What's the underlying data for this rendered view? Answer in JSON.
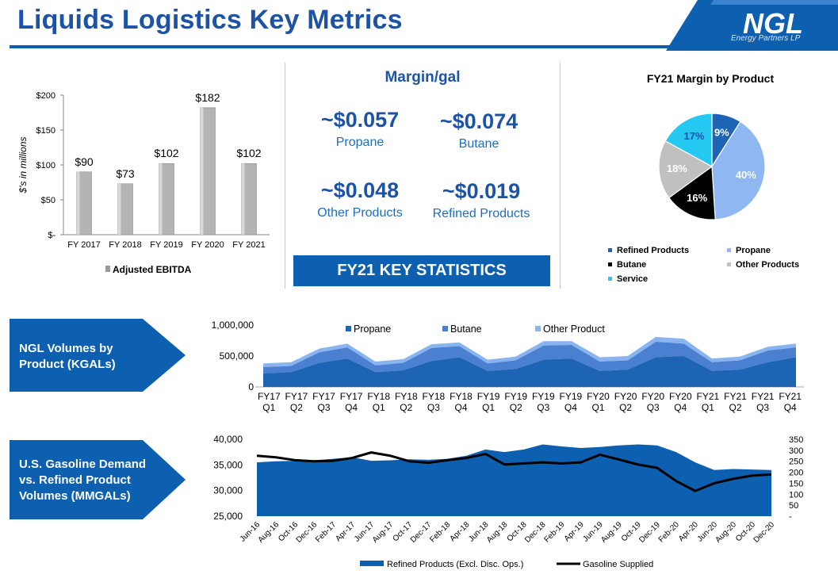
{
  "header": {
    "title": "Liquids Logistics Key Metrics",
    "logo_text": "NGL",
    "logo_tagline": "Energy Partners LP"
  },
  "colors": {
    "title_blue": "#1c53a6",
    "dark_blue": "#0d5fb0",
    "propane_blue": "#1e64b4",
    "butane_blue": "#4b7fd0",
    "other_blue": "#8ab4f0",
    "pie_light": "#8fb8f2",
    "pie_grey": "#c0c0c0",
    "pie_cyan": "#25c8f0",
    "bar_grey": "#b4b4b4",
    "refined_fill": "#0d5fb0"
  },
  "margin_panel": {
    "title": "Margin/gal",
    "items": [
      {
        "value": "~$0.057",
        "label": "Propane"
      },
      {
        "value": "~$0.074",
        "label": "Butane"
      },
      {
        "value": "~$0.048",
        "label": "Other Products"
      },
      {
        "value": "~$0.019",
        "label": "Refined Products"
      }
    ],
    "key_stats": "FY21 KEY STATISTICS"
  },
  "arrows": {
    "volumes": [
      "NGL Volumes by",
      "Product (KGALs)"
    ],
    "gasoline": [
      "U.S. Gasoline Demand",
      "vs. Refined Product",
      "Volumes (MMGALs)"
    ]
  },
  "chart_data": [
    {
      "id": "ebitda",
      "type": "bar",
      "categories": [
        "FY 2017",
        "FY 2018",
        "FY 2019",
        "FY 2020",
        "FY 2021"
      ],
      "values": [
        90,
        73,
        102,
        182,
        102
      ],
      "data_labels": [
        "$90",
        "$73",
        "$102",
        "$182",
        "$102"
      ],
      "ylabel": "$'s in millions",
      "ylim": [
        0,
        200
      ],
      "yticks": [
        0,
        50,
        100,
        150,
        200
      ],
      "ytick_labels": [
        "$-",
        "$50",
        "$100",
        "$150",
        "$200"
      ],
      "legend": [
        "Adjusted EBITDA"
      ],
      "legend_position": "bottom"
    },
    {
      "id": "margin_by_product",
      "type": "pie",
      "title": "FY21 Margin by Product",
      "labels": [
        "Refined Products",
        "Propane",
        "Butane",
        "Other Products",
        "Service"
      ],
      "values": [
        9,
        40,
        16,
        18,
        17
      ],
      "data_labels": [
        "9%",
        "40%",
        "16%",
        "18%",
        "17%"
      ],
      "legend_position": "bottom"
    },
    {
      "id": "ngl_volumes",
      "type": "area",
      "stacked": true,
      "categories": [
        "FY17 Q1",
        "FY17 Q2",
        "FY17 Q3",
        "FY17 Q4",
        "FY18 Q1",
        "FY18 Q2",
        "FY18 Q3",
        "FY18 Q4",
        "FY19 Q1",
        "FY19 Q2",
        "FY19 Q3",
        "FY19 Q4",
        "FY20 Q1",
        "FY20 Q2",
        "FY20 Q3",
        "FY20 Q4",
        "FY21 Q1",
        "FY21 Q2",
        "FY21 Q3",
        "FY21 Q4"
      ],
      "series": [
        {
          "name": "Propane",
          "values": [
            220000,
            240000,
            390000,
            460000,
            240000,
            270000,
            420000,
            480000,
            260000,
            290000,
            440000,
            460000,
            260000,
            280000,
            480000,
            500000,
            260000,
            280000,
            400000,
            480000
          ]
        },
        {
          "name": "Butane",
          "values": [
            100000,
            100000,
            170000,
            180000,
            110000,
            120000,
            210000,
            180000,
            120000,
            140000,
            230000,
            220000,
            150000,
            150000,
            250000,
            200000,
            140000,
            150000,
            190000,
            160000
          ]
        },
        {
          "name": "Other Product",
          "values": [
            60000,
            60000,
            60000,
            60000,
            60000,
            60000,
            60000,
            60000,
            60000,
            60000,
            70000,
            60000,
            70000,
            70000,
            80000,
            80000,
            60000,
            60000,
            60000,
            60000
          ]
        }
      ],
      "ylim": [
        0,
        1000000
      ],
      "yticks": [
        0,
        500000,
        1000000
      ],
      "ytick_labels": [
        "0",
        "500,000",
        "1,000,000"
      ],
      "legend_position": "top"
    },
    {
      "id": "gasoline",
      "type": "area",
      "categories": [
        "Jun-16",
        "Aug-16",
        "Oct-16",
        "Dec-16",
        "Feb-17",
        "Apr-17",
        "Jun-17",
        "Aug-17",
        "Oct-17",
        "Dec-17",
        "Feb-18",
        "Apr-18",
        "Jun-18",
        "Aug-18",
        "Oct-18",
        "Dec-18",
        "Feb-19",
        "Apr-19",
        "Jun-19",
        "Aug-19",
        "Oct-19",
        "Dec-19",
        "Feb-20",
        "Apr-20",
        "Jun-20",
        "Aug-20",
        "Oct-20",
        "Dec-20"
      ],
      "series": [
        {
          "name": "Refined Products (Excl. Disc. Ops.)",
          "axis": "left",
          "kind": "area",
          "values": [
            35500,
            35700,
            35800,
            35900,
            36200,
            36500,
            35800,
            35900,
            36100,
            36000,
            36200,
            36800,
            38000,
            37500,
            38000,
            39000,
            38600,
            38300,
            38500,
            38800,
            39000,
            38800,
            37500,
            35500,
            34000,
            34200,
            34100,
            34000
          ]
        },
        {
          "name": "Gasoline Supplied",
          "axis": "right",
          "kind": "line",
          "values": [
            275,
            268,
            255,
            250,
            252,
            265,
            290,
            275,
            250,
            243,
            255,
            265,
            283,
            235,
            240,
            245,
            240,
            245,
            280,
            258,
            235,
            220,
            160,
            115,
            150,
            170,
            185,
            190
          ]
        }
      ],
      "ylim_left": [
        25000,
        40000
      ],
      "yticks_left": [
        25000,
        30000,
        35000,
        40000
      ],
      "ytick_labels_left": [
        "25,000",
        "30,000",
        "35,000",
        "40,000"
      ],
      "ylim_right": [
        0,
        350
      ],
      "yticks_right": [
        0,
        50,
        100,
        150,
        200,
        250,
        300,
        350
      ],
      "ytick_labels_right": [
        "-",
        "50",
        "100",
        "150",
        "200",
        "250",
        "300",
        "350"
      ],
      "legend_position": "bottom"
    }
  ]
}
